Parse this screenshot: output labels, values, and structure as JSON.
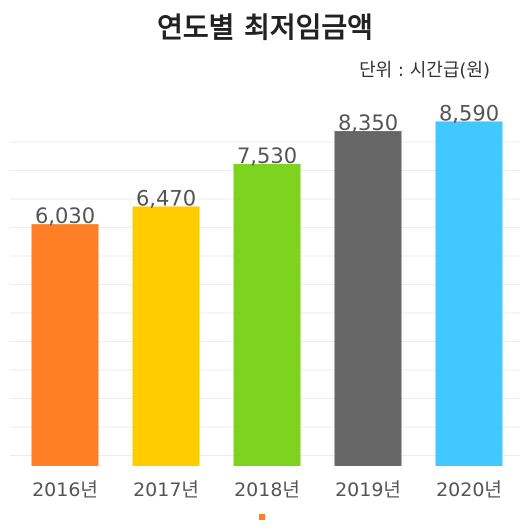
{
  "chart_data": {
    "type": "bar",
    "title": "연도별 최저임금액",
    "unit_label": "단위 : 시간급(원)",
    "categories": [
      "2016년",
      "2017년",
      "2018년",
      "2019년",
      "2020년"
    ],
    "values": [
      6030,
      6470,
      7530,
      8350,
      8590
    ],
    "value_labels": [
      "6,030",
      "6,470",
      "7,530",
      "8,350",
      "8,590"
    ],
    "colors": [
      "#FF7F27",
      "#FFCC00",
      "#7ED321",
      "#666666",
      "#40C8FF"
    ],
    "ylim": [
      0,
      9000
    ],
    "grid": true,
    "legend_marker_color": "#FF7F27"
  }
}
